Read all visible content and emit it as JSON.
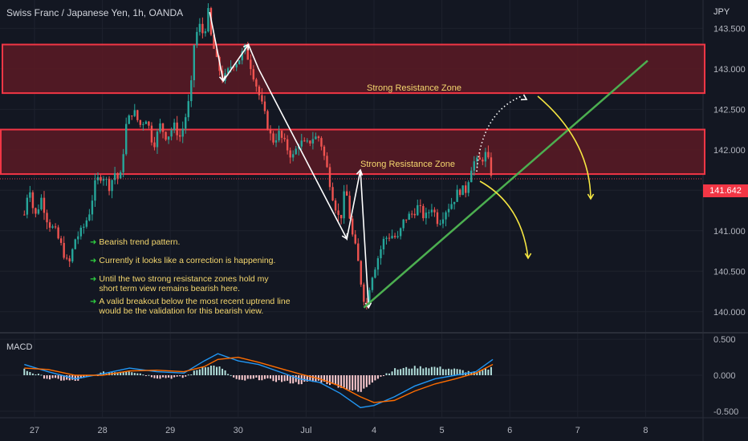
{
  "header": {
    "title": "Swiss Franc / Japanese Yen, 1h, OANDA",
    "currency": "JPY"
  },
  "macd": {
    "label": "MACD"
  },
  "last_price": "141.642",
  "annotations": {
    "upper_zone_label": "Strong Resistance Zone",
    "lower_zone_label": "Strong Resistance Zone",
    "notes": [
      {
        "text": "Bearish trend pattern."
      },
      {
        "text": "Currently it looks like a correction is happening."
      },
      {
        "text": "Until the two strong resistance zones hold my\nshort term view remains bearish here."
      },
      {
        "text": "A valid breakout below the most recent uptrend line\nwould be the validation for this bearish view."
      }
    ]
  },
  "colors": {
    "background": "#131722",
    "candle_up": "#26a69a",
    "candle_down": "#ef5350",
    "zone_fill": "#5c1a24",
    "zone_border": "#f23645",
    "trendline": "#4caf50",
    "projection_arrow": "#f5e642",
    "macd_line": "#2196f3",
    "signal_line": "#ff6d00",
    "note_text": "#f5d76e"
  },
  "chart_data": {
    "type": "candlestick",
    "title": "Swiss Franc / Japanese Yen, 1h, OANDA",
    "currency": "JPY",
    "x_tick_labels": [
      "27",
      "28",
      "29",
      "30",
      "Jul",
      "4",
      "5",
      "6",
      "7",
      "8"
    ],
    "y_tick_labels": [
      "143.500",
      "143.000",
      "142.500",
      "142.000",
      "141.500",
      "141.000",
      "140.500",
      "140.000"
    ],
    "y_ticks": [
      143.5,
      143.0,
      142.5,
      142.0,
      141.5,
      141.0,
      140.5,
      140.0
    ],
    "ylim": [
      139.75,
      143.85
    ],
    "last_price": 141.642,
    "price_path": [
      [
        26.85,
        141.2
      ],
      [
        26.92,
        141.6
      ],
      [
        27.0,
        141.15
      ],
      [
        27.1,
        141.4
      ],
      [
        27.2,
        141.1
      ],
      [
        27.3,
        141.0
      ],
      [
        27.4,
        140.8
      ],
      [
        27.5,
        140.55
      ],
      [
        27.6,
        140.9
      ],
      [
        27.7,
        141.0
      ],
      [
        27.8,
        141.2
      ],
      [
        27.9,
        141.6
      ],
      [
        28.0,
        141.7
      ],
      [
        28.1,
        141.55
      ],
      [
        28.2,
        141.75
      ],
      [
        28.25,
        141.55
      ],
      [
        28.35,
        142.3
      ],
      [
        28.45,
        142.5
      ],
      [
        28.55,
        142.3
      ],
      [
        28.65,
        142.4
      ],
      [
        28.75,
        142.05
      ],
      [
        28.85,
        142.3
      ],
      [
        28.95,
        142.15
      ],
      [
        29.05,
        142.3
      ],
      [
        29.15,
        142.15
      ],
      [
        29.25,
        142.5
      ],
      [
        29.3,
        142.7
      ],
      [
        29.35,
        143.3
      ],
      [
        29.42,
        143.55
      ],
      [
        29.5,
        143.4
      ],
      [
        29.55,
        143.75
      ],
      [
        29.6,
        143.4
      ],
      [
        29.68,
        143.1
      ],
      [
        29.78,
        142.85
      ],
      [
        29.9,
        143.05
      ],
      [
        30.0,
        143.1
      ],
      [
        30.1,
        143.25
      ],
      [
        30.2,
        143.0
      ],
      [
        30.3,
        142.7
      ],
      [
        30.4,
        142.4
      ],
      [
        30.5,
        142.1
      ],
      [
        30.6,
        142.2
      ],
      [
        30.7,
        142.05
      ],
      [
        30.8,
        141.9
      ],
      [
        30.9,
        142.1
      ],
      [
        31.0,
        142.05
      ],
      [
        31.1,
        142.15
      ],
      [
        31.2,
        142.15
      ],
      [
        31.3,
        141.8
      ],
      [
        31.4,
        141.4
      ],
      [
        31.5,
        141.1
      ],
      [
        31.58,
        141.55
      ],
      [
        31.62,
        141.3
      ],
      [
        31.68,
        140.95
      ],
      [
        31.75,
        140.7
      ],
      [
        31.82,
        140.3
      ],
      [
        31.88,
        140.05
      ],
      [
        31.95,
        140.4
      ],
      [
        32.05,
        140.65
      ],
      [
        32.15,
        140.9
      ],
      [
        32.25,
        140.95
      ],
      [
        32.35,
        140.9
      ],
      [
        32.45,
        141.15
      ],
      [
        32.55,
        141.2
      ],
      [
        32.65,
        141.3
      ],
      [
        32.75,
        141.15
      ],
      [
        32.85,
        141.3
      ],
      [
        32.95,
        141.1
      ],
      [
        33.05,
        141.25
      ],
      [
        33.15,
        141.35
      ],
      [
        33.25,
        141.5
      ],
      [
        33.35,
        141.5
      ],
      [
        33.45,
        141.85
      ],
      [
        33.55,
        141.85
      ],
      [
        33.65,
        141.95
      ],
      [
        33.7,
        141.8
      ],
      [
        33.75,
        141.64
      ]
    ],
    "zones": [
      {
        "name": "upper",
        "from": 142.7,
        "to": 143.3
      },
      {
        "name": "lower",
        "from": 141.7,
        "to": 142.25
      }
    ],
    "trendline": {
      "x": [
        31.85,
        36.03
      ],
      "y": [
        140.05,
        143.1
      ]
    },
    "grid": true,
    "macd_y_tick_labels": [
      "0.500",
      "0.000",
      "-0.500"
    ],
    "macd_y_ticks": [
      0.5,
      0.0,
      -0.5
    ],
    "macd_ylim": [
      -0.58,
      0.58
    ],
    "macd_path": [
      [
        26.85,
        0.15
      ],
      [
        27.2,
        0.05
      ],
      [
        27.6,
        -0.05
      ],
      [
        28.0,
        0.02
      ],
      [
        28.4,
        0.1
      ],
      [
        28.8,
        0.05
      ],
      [
        29.2,
        0.03
      ],
      [
        29.5,
        0.2
      ],
      [
        29.7,
        0.3
      ],
      [
        30.0,
        0.2
      ],
      [
        30.3,
        0.15
      ],
      [
        30.6,
        0.05
      ],
      [
        30.9,
        -0.05
      ],
      [
        31.2,
        -0.1
      ],
      [
        31.5,
        -0.25
      ],
      [
        31.8,
        -0.45
      ],
      [
        32.0,
        -0.42
      ],
      [
        32.3,
        -0.3
      ],
      [
        32.6,
        -0.15
      ],
      [
        32.9,
        -0.05
      ],
      [
        33.2,
        0.0
      ],
      [
        33.5,
        0.05
      ],
      [
        33.75,
        0.22
      ]
    ],
    "signal_path": [
      [
        26.85,
        0.1
      ],
      [
        27.2,
        0.08
      ],
      [
        27.6,
        0.0
      ],
      [
        28.0,
        0.0
      ],
      [
        28.4,
        0.06
      ],
      [
        28.8,
        0.07
      ],
      [
        29.2,
        0.05
      ],
      [
        29.5,
        0.12
      ],
      [
        29.7,
        0.22
      ],
      [
        30.0,
        0.25
      ],
      [
        30.3,
        0.18
      ],
      [
        30.6,
        0.1
      ],
      [
        30.9,
        0.02
      ],
      [
        31.2,
        -0.05
      ],
      [
        31.5,
        -0.15
      ],
      [
        31.8,
        -0.3
      ],
      [
        32.0,
        -0.38
      ],
      [
        32.3,
        -0.35
      ],
      [
        32.6,
        -0.22
      ],
      [
        32.9,
        -0.12
      ],
      [
        33.2,
        -0.05
      ],
      [
        33.5,
        0.03
      ],
      [
        33.75,
        0.15
      ]
    ]
  }
}
